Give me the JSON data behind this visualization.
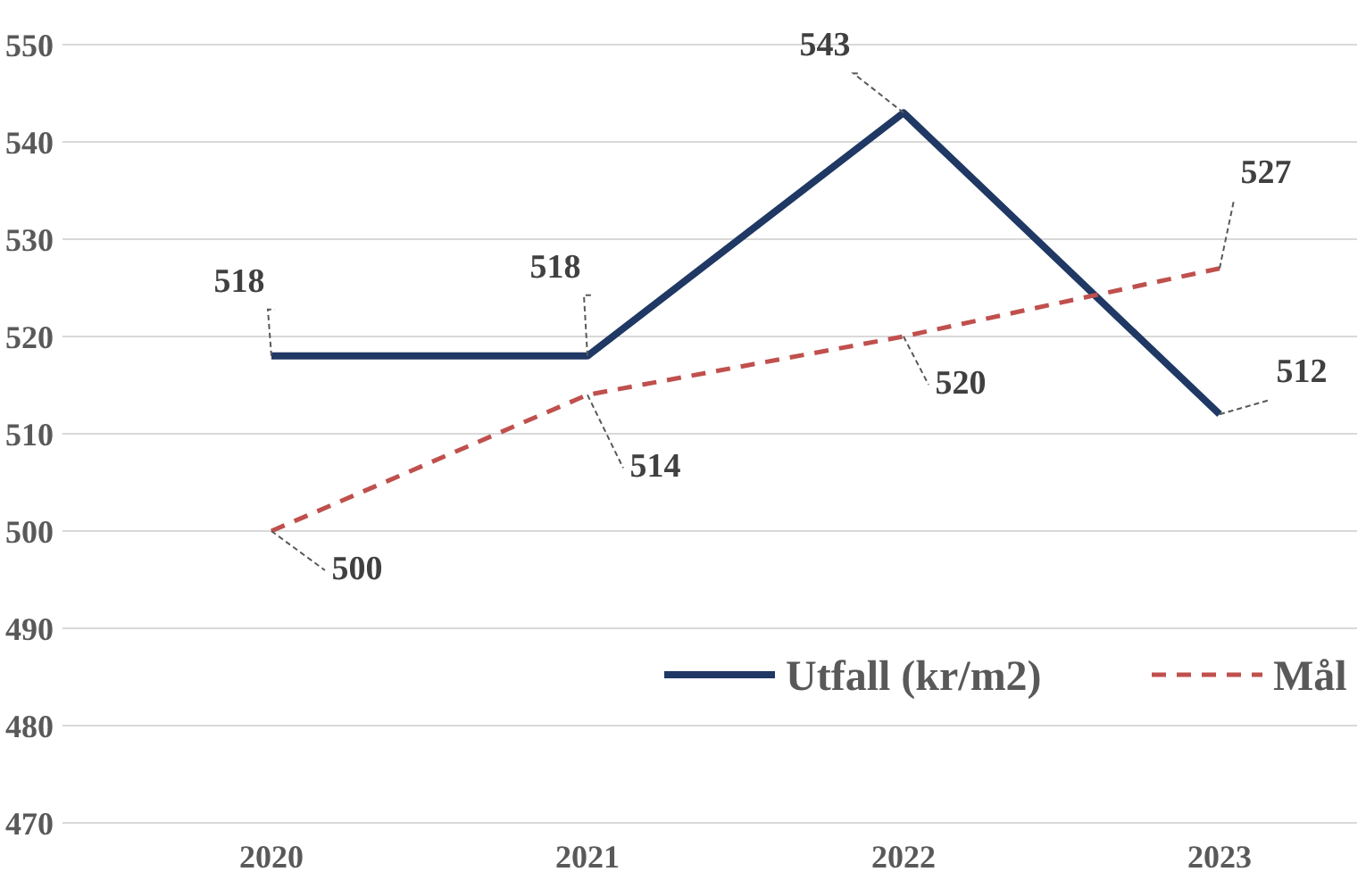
{
  "chart_data": {
    "type": "line",
    "categories": [
      "2020",
      "2021",
      "2022",
      "2023"
    ],
    "series": [
      {
        "name": "Utfall (kr/m2)",
        "color": "#1f3864",
        "values": [
          518,
          518,
          543,
          512
        ],
        "line_style": "solid"
      },
      {
        "name": "Mål",
        "color": "#c0504d",
        "values": [
          500,
          514,
          520,
          527
        ],
        "line_style": "dashed"
      }
    ],
    "ylim": [
      470,
      550
    ],
    "yticks": [
      470,
      480,
      490,
      500,
      510,
      520,
      530,
      540,
      550
    ],
    "grid": "y",
    "legend": "bottom right",
    "data_labels": true,
    "marker": "none"
  }
}
